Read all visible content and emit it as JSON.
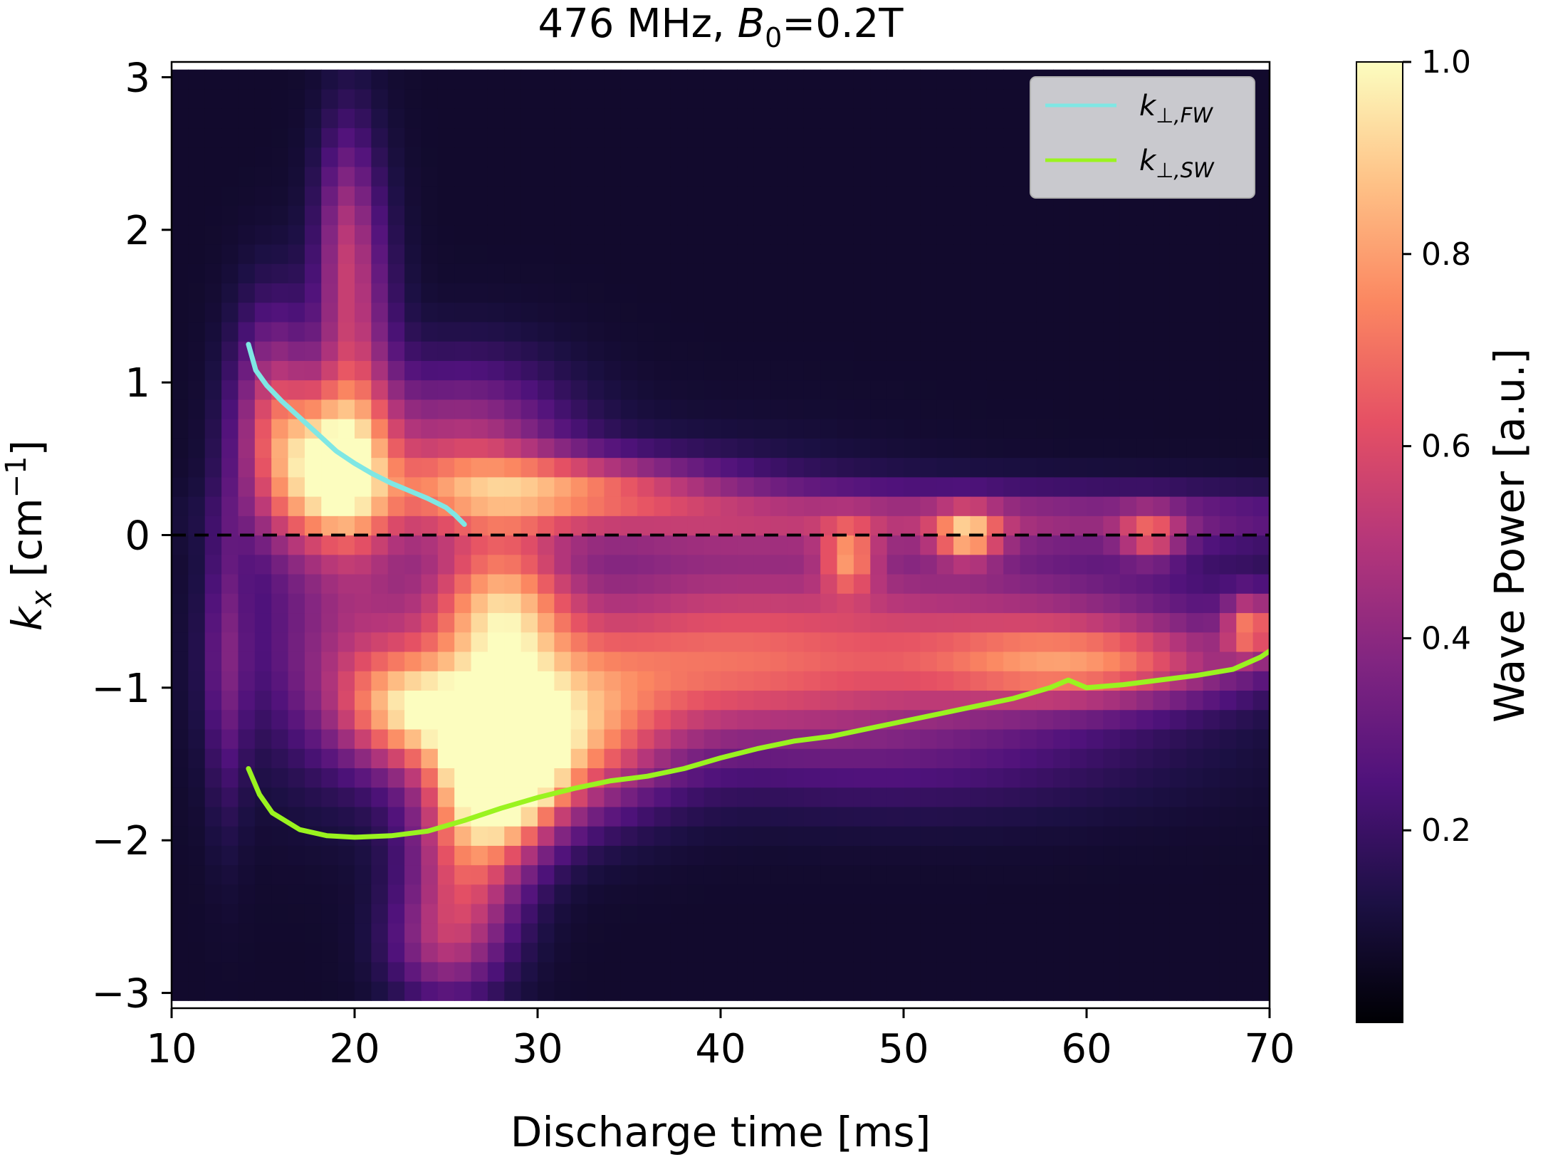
{
  "chart_data": {
    "type": "heatmap",
    "title_parts": [
      "476 MHz, ",
      "B",
      "0",
      "=0.2T"
    ],
    "xlabel": "Discharge time [ms]",
    "ylabel_parts": [
      "k",
      "x",
      " [cm",
      "−1",
      "]"
    ],
    "x_ticks": [
      {
        "value": 10,
        "label": "10"
      },
      {
        "value": 20,
        "label": "20"
      },
      {
        "value": 30,
        "label": "30"
      },
      {
        "value": 40,
        "label": "40"
      },
      {
        "value": 50,
        "label": "50"
      },
      {
        "value": 60,
        "label": "60"
      },
      {
        "value": 70,
        "label": "70"
      }
    ],
    "y_ticks": [
      {
        "value": 3,
        "label": "3"
      },
      {
        "value": 2,
        "label": "2"
      },
      {
        "value": 1,
        "label": "1"
      },
      {
        "value": 0,
        "label": "0"
      },
      {
        "value": -1,
        "label": "−1"
      },
      {
        "value": -2,
        "label": "−2"
      },
      {
        "value": -3,
        "label": "−3"
      }
    ],
    "xlim": [
      10,
      70
    ],
    "ylim": [
      -3.1,
      3.1
    ],
    "data_extent": {
      "x": [
        10,
        70
      ],
      "y": [
        -3.05,
        3.05
      ]
    },
    "colorbar": {
      "label": "Wave Power [a.u.]",
      "range": [
        0,
        1
      ],
      "colormap": "magma",
      "ticks": [
        {
          "value": 0.2,
          "label": "0.2"
        },
        {
          "value": 0.4,
          "label": "0.4"
        },
        {
          "value": 0.6,
          "label": "0.6"
        },
        {
          "value": 0.8,
          "label": "0.8"
        },
        {
          "value": 1.0,
          "label": "1.0"
        }
      ]
    },
    "zero_line": {
      "y": 0,
      "style": "dashed",
      "color": "#000000"
    },
    "heatmap_blobs": [
      {
        "t": 18.5,
        "k": 0.45,
        "st": 2.2,
        "sk": 0.35,
        "amp": 0.75
      },
      {
        "t": 20.0,
        "k": 1.2,
        "st": 1.5,
        "sk": 0.8,
        "amp": 0.35
      },
      {
        "t": 19.5,
        "k": 2.0,
        "st": 1.0,
        "sk": 0.5,
        "amp": 0.22
      },
      {
        "t": 15.5,
        "k": 0.8,
        "st": 1.5,
        "sk": 0.5,
        "amp": 0.4
      },
      {
        "t": 26.0,
        "k": 0.55,
        "st": 4.0,
        "sk": 0.4,
        "amp": 0.4
      },
      {
        "t": 31.0,
        "k": 0.32,
        "st": 6.0,
        "sk": 0.15,
        "amp": 0.45
      },
      {
        "t": 52.0,
        "k": 0.12,
        "st": 18.0,
        "sk": 0.14,
        "amp": 0.3
      },
      {
        "t": 53.5,
        "k": 0.0,
        "st": 1.2,
        "sk": 0.12,
        "amp": 0.5
      },
      {
        "t": 63.5,
        "k": 0.0,
        "st": 1.2,
        "sk": 0.12,
        "amp": 0.35
      },
      {
        "t": 47.0,
        "k": -0.15,
        "st": 1.0,
        "sk": 0.15,
        "amp": 0.4
      },
      {
        "t": 28.0,
        "k": -0.5,
        "st": 2.5,
        "sk": 0.35,
        "amp": 0.6
      },
      {
        "t": 28.0,
        "k": -1.55,
        "st": 2.2,
        "sk": 0.35,
        "amp": 0.95
      },
      {
        "t": 31.0,
        "k": -1.35,
        "st": 4.0,
        "sk": 0.35,
        "amp": 0.6
      },
      {
        "t": 23.0,
        "k": -1.15,
        "st": 2.5,
        "sk": 0.25,
        "amp": 0.55
      },
      {
        "t": 26.0,
        "k": -2.2,
        "st": 2.2,
        "sk": 0.45,
        "amp": 0.45
      },
      {
        "t": 24.5,
        "k": -2.7,
        "st": 2.0,
        "sk": 0.25,
        "amp": 0.22
      },
      {
        "t": 40.0,
        "k": -0.9,
        "st": 10.0,
        "sk": 0.3,
        "amp": 0.4
      },
      {
        "t": 60.0,
        "k": -0.85,
        "st": 6.0,
        "sk": 0.2,
        "amp": 0.5
      },
      {
        "t": 69.0,
        "k": -0.6,
        "st": 1.0,
        "sk": 0.15,
        "amp": 0.5
      },
      {
        "t": 55.0,
        "k": -0.45,
        "st": 10.0,
        "sk": 0.35,
        "amp": 0.28
      },
      {
        "t": 38.0,
        "k": -0.35,
        "st": 8.0,
        "sk": 0.5,
        "amp": 0.25
      },
      {
        "t": 20.0,
        "k": -0.7,
        "st": 4.0,
        "sk": 0.6,
        "amp": 0.3
      },
      {
        "t": 50.0,
        "k": -1.4,
        "st": 10.0,
        "sk": 0.3,
        "amp": 0.18
      },
      {
        "t": 13.0,
        "k": -0.8,
        "st": 0.8,
        "sk": 0.7,
        "amp": 0.22
      }
    ],
    "series": [
      {
        "name_parts": [
          "k",
          "⊥,FW"
        ],
        "color": "#7fe7e4",
        "x": [
          14.2,
          14.6,
          15.2,
          16.0,
          17.0,
          18.0,
          19.0,
          20.0,
          21.0,
          22.0,
          23.0,
          24.0,
          25.0,
          25.5,
          26.0
        ],
        "y": [
          1.25,
          1.08,
          0.98,
          0.88,
          0.77,
          0.66,
          0.55,
          0.47,
          0.4,
          0.34,
          0.29,
          0.24,
          0.18,
          0.13,
          0.07
        ]
      },
      {
        "name_parts": [
          "k",
          "⊥,SW"
        ],
        "color": "#9af31f",
        "x": [
          14.2,
          14.8,
          15.5,
          17.0,
          18.5,
          20.0,
          22.0,
          24.0,
          26.0,
          28.0,
          30.0,
          32.0,
          34.0,
          36.0,
          38.0,
          40.0,
          42.0,
          44.0,
          46.0,
          48.0,
          50.0,
          52.0,
          54.0,
          56.0,
          58.0,
          59.0,
          60.0,
          62.0,
          64.0,
          66.0,
          68.0,
          69.5,
          70.0
        ],
        "y": [
          -1.53,
          -1.7,
          -1.82,
          -1.93,
          -1.97,
          -1.98,
          -1.97,
          -1.94,
          -1.87,
          -1.79,
          -1.72,
          -1.66,
          -1.61,
          -1.58,
          -1.53,
          -1.46,
          -1.4,
          -1.35,
          -1.32,
          -1.27,
          -1.22,
          -1.17,
          -1.12,
          -1.07,
          -1.0,
          -0.95,
          -1.0,
          -0.98,
          -0.95,
          -0.92,
          -0.88,
          -0.8,
          -0.76
        ]
      }
    ],
    "legend_position": "upper-right"
  }
}
